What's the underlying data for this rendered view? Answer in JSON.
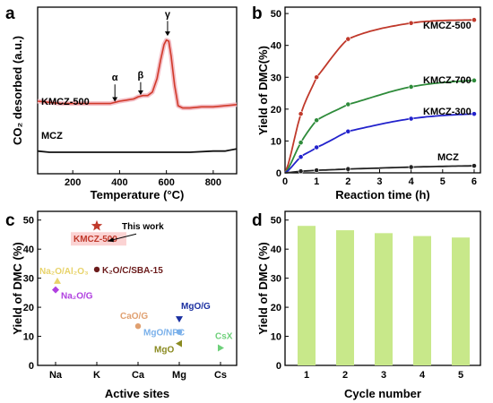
{
  "panels": [
    {
      "id": "a",
      "label": "a"
    },
    {
      "id": "b",
      "label": "b"
    },
    {
      "id": "c",
      "label": "c"
    },
    {
      "id": "d",
      "label": "d"
    }
  ],
  "chart_data": [
    {
      "panel": "a",
      "type": "line",
      "xlabel": "Temperature (°C)",
      "ylabel": "CO₂ desorbed (a.u.)",
      "xlim": [
        50,
        900
      ],
      "xticks": [
        "200",
        "400",
        "600",
        "800"
      ],
      "y_tick_labels": false,
      "series": [
        {
          "name": "KMCZ-500",
          "color": "#d13a2a",
          "x": [
            50,
            100,
            150,
            200,
            250,
            300,
            330,
            360,
            380,
            400,
            430,
            460,
            480,
            500,
            520,
            540,
            560,
            575,
            590,
            600,
            610,
            620,
            635,
            650,
            670,
            700,
            750,
            800,
            850,
            900
          ],
          "y": [
            0.52,
            0.51,
            0.5,
            0.5,
            0.5,
            0.5,
            0.5,
            0.5,
            0.51,
            0.52,
            0.53,
            0.54,
            0.56,
            0.57,
            0.57,
            0.6,
            0.72,
            0.88,
            1.02,
            1.06,
            1.05,
            0.92,
            0.66,
            0.48,
            0.46,
            0.46,
            0.47,
            0.47,
            0.48,
            0.49
          ]
        },
        {
          "name": "MCZ",
          "color": "#111111",
          "x": [
            50,
            100,
            200,
            300,
            400,
            500,
            600,
            700,
            800,
            850,
            900
          ],
          "y": [
            0.08,
            0.07,
            0.07,
            0.07,
            0.07,
            0.07,
            0.07,
            0.07,
            0.08,
            0.08,
            0.1
          ]
        }
      ],
      "ylim": [
        -0.12,
        1.35
      ],
      "annotations": [
        {
          "text": "α",
          "x": 380,
          "tip": 0.5,
          "top": 0.7
        },
        {
          "text": "β",
          "x": 490,
          "tip": 0.56,
          "top": 0.72
        },
        {
          "text": "γ",
          "x": 605,
          "tip": 1.08,
          "top": 1.26
        }
      ]
    },
    {
      "panel": "b",
      "type": "line",
      "xlabel": "Reaction time (h)",
      "ylabel": "Yield of DMC(%)",
      "xlim": [
        0,
        6.2
      ],
      "ylim": [
        0,
        52
      ],
      "xticks": [
        0,
        1,
        2,
        3,
        4,
        5,
        6
      ],
      "yticks": [
        0,
        10,
        20,
        30,
        40,
        50
      ],
      "series": [
        {
          "name": "KMCZ-500",
          "color": "#c0392b",
          "x": [
            0,
            0.5,
            1,
            2,
            4,
            6
          ],
          "y": [
            0,
            18.5,
            30,
            42,
            47,
            48
          ]
        },
        {
          "name": "KMCZ-700",
          "color": "#2e8b3a",
          "x": [
            0,
            0.5,
            1,
            2,
            4,
            6
          ],
          "y": [
            0,
            9.5,
            16.5,
            21.5,
            27,
            29
          ]
        },
        {
          "name": "KMCZ-300",
          "color": "#2222cc",
          "x": [
            0,
            0.5,
            1,
            2,
            4,
            6
          ],
          "y": [
            0,
            5,
            8,
            13,
            17,
            18.5
          ]
        },
        {
          "name": "MCZ",
          "color": "#222222",
          "x": [
            0,
            0.5,
            1,
            2,
            4,
            6
          ],
          "y": [
            0,
            0.5,
            0.8,
            1.2,
            1.8,
            2.2
          ]
        }
      ]
    },
    {
      "panel": "c",
      "type": "scatter",
      "xlabel": "Active sites",
      "ylabel": "Yield of DMC (%)",
      "categories": [
        "Na",
        "K",
        "Ca",
        "Mg",
        "Cs"
      ],
      "ylim": [
        0,
        53
      ],
      "yticks": [
        0,
        10,
        20,
        30,
        40,
        50
      ],
      "points": [
        {
          "label": "KMCZ-500",
          "cat": 1,
          "y": 48,
          "color": "#c0392b",
          "marker": "star"
        },
        {
          "label": "K₂O/C/SBA-15",
          "cat": 1,
          "y": 33,
          "color": "#6b1b1b",
          "marker": "circle"
        },
        {
          "label": "Na₂O/Al₂O₃",
          "cat": 0,
          "y": 29,
          "color": "#e8d36a",
          "marker": "triangle-up"
        },
        {
          "label": "Na₂O/G",
          "cat": 0,
          "y": 26,
          "color": "#b040e0",
          "marker": "diamond"
        },
        {
          "label": "CaO/G",
          "cat": 2,
          "y": 13.5,
          "color": "#e0a070",
          "marker": "circle"
        },
        {
          "label": "MgO/G",
          "cat": 3,
          "y": 16,
          "color": "#1a2fa0",
          "marker": "triangle-down"
        },
        {
          "label": "MgO/NPC",
          "cat": 3,
          "y": 11.5,
          "color": "#7ab0ea",
          "marker": "circle"
        },
        {
          "label": "MgO",
          "cat": 3,
          "y": 7.5,
          "color": "#8a8a20",
          "marker": "triangle-left"
        },
        {
          "label": "CsX",
          "cat": 4,
          "y": 6,
          "color": "#6ed07a",
          "marker": "triangle-right"
        }
      ],
      "annotation": "This work"
    },
    {
      "panel": "d",
      "type": "bar",
      "xlabel": "Cycle number",
      "ylabel": "Yield of DMC (%)",
      "categories": [
        "1",
        "2",
        "3",
        "4",
        "5"
      ],
      "values": [
        48,
        46.5,
        45.5,
        44.5,
        44
      ],
      "ylim": [
        0,
        53
      ],
      "yticks": [
        0,
        10,
        20,
        30,
        40,
        50
      ],
      "color": "#c8e88a"
    }
  ]
}
